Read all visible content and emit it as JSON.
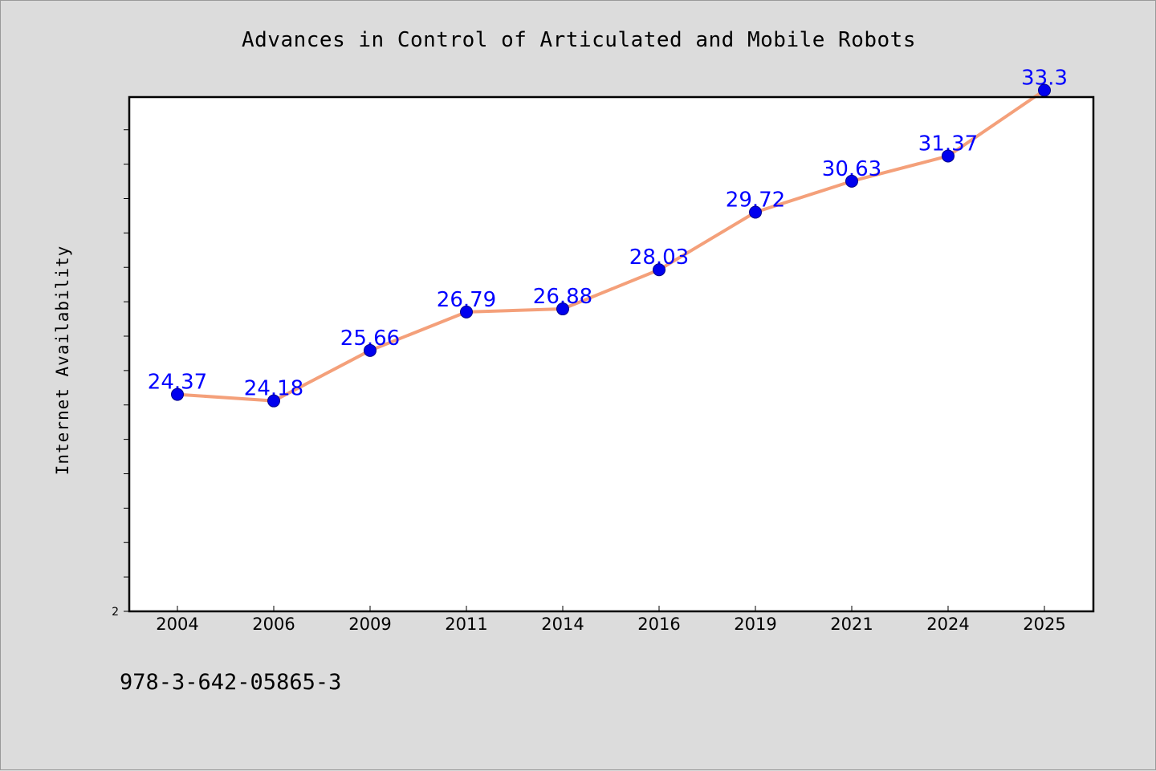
{
  "chart_data": {
    "type": "line",
    "title": "Advances in Control of Articulated and Mobile Robots",
    "xlabel": "",
    "ylabel": "Internet Availability",
    "categories": [
      "2004",
      "2006",
      "2009",
      "2011",
      "2014",
      "2016",
      "2019",
      "2021",
      "2024",
      "2025"
    ],
    "series": [
      {
        "values": [
          24.37,
          24.18,
          25.66,
          26.79,
          26.88,
          28.03,
          29.72,
          30.63,
          31.37,
          33.3
        ],
        "labels": [
          "24.37",
          "24.18",
          "25.66",
          "26.79",
          "26.88",
          "28.03",
          "29.72",
          "30.63",
          "31.37",
          "33.3"
        ]
      }
    ],
    "y_tick_label": "2",
    "ylim": [
      18.0,
      33.1
    ],
    "grid": false,
    "colors": {
      "line": "#f4a07a",
      "marker": "#0000ee",
      "marker_edge": "#00008b",
      "data_label": "#0000ff",
      "frame": "#000000"
    }
  },
  "footer": {
    "code": "978-3-642-05865-3"
  }
}
